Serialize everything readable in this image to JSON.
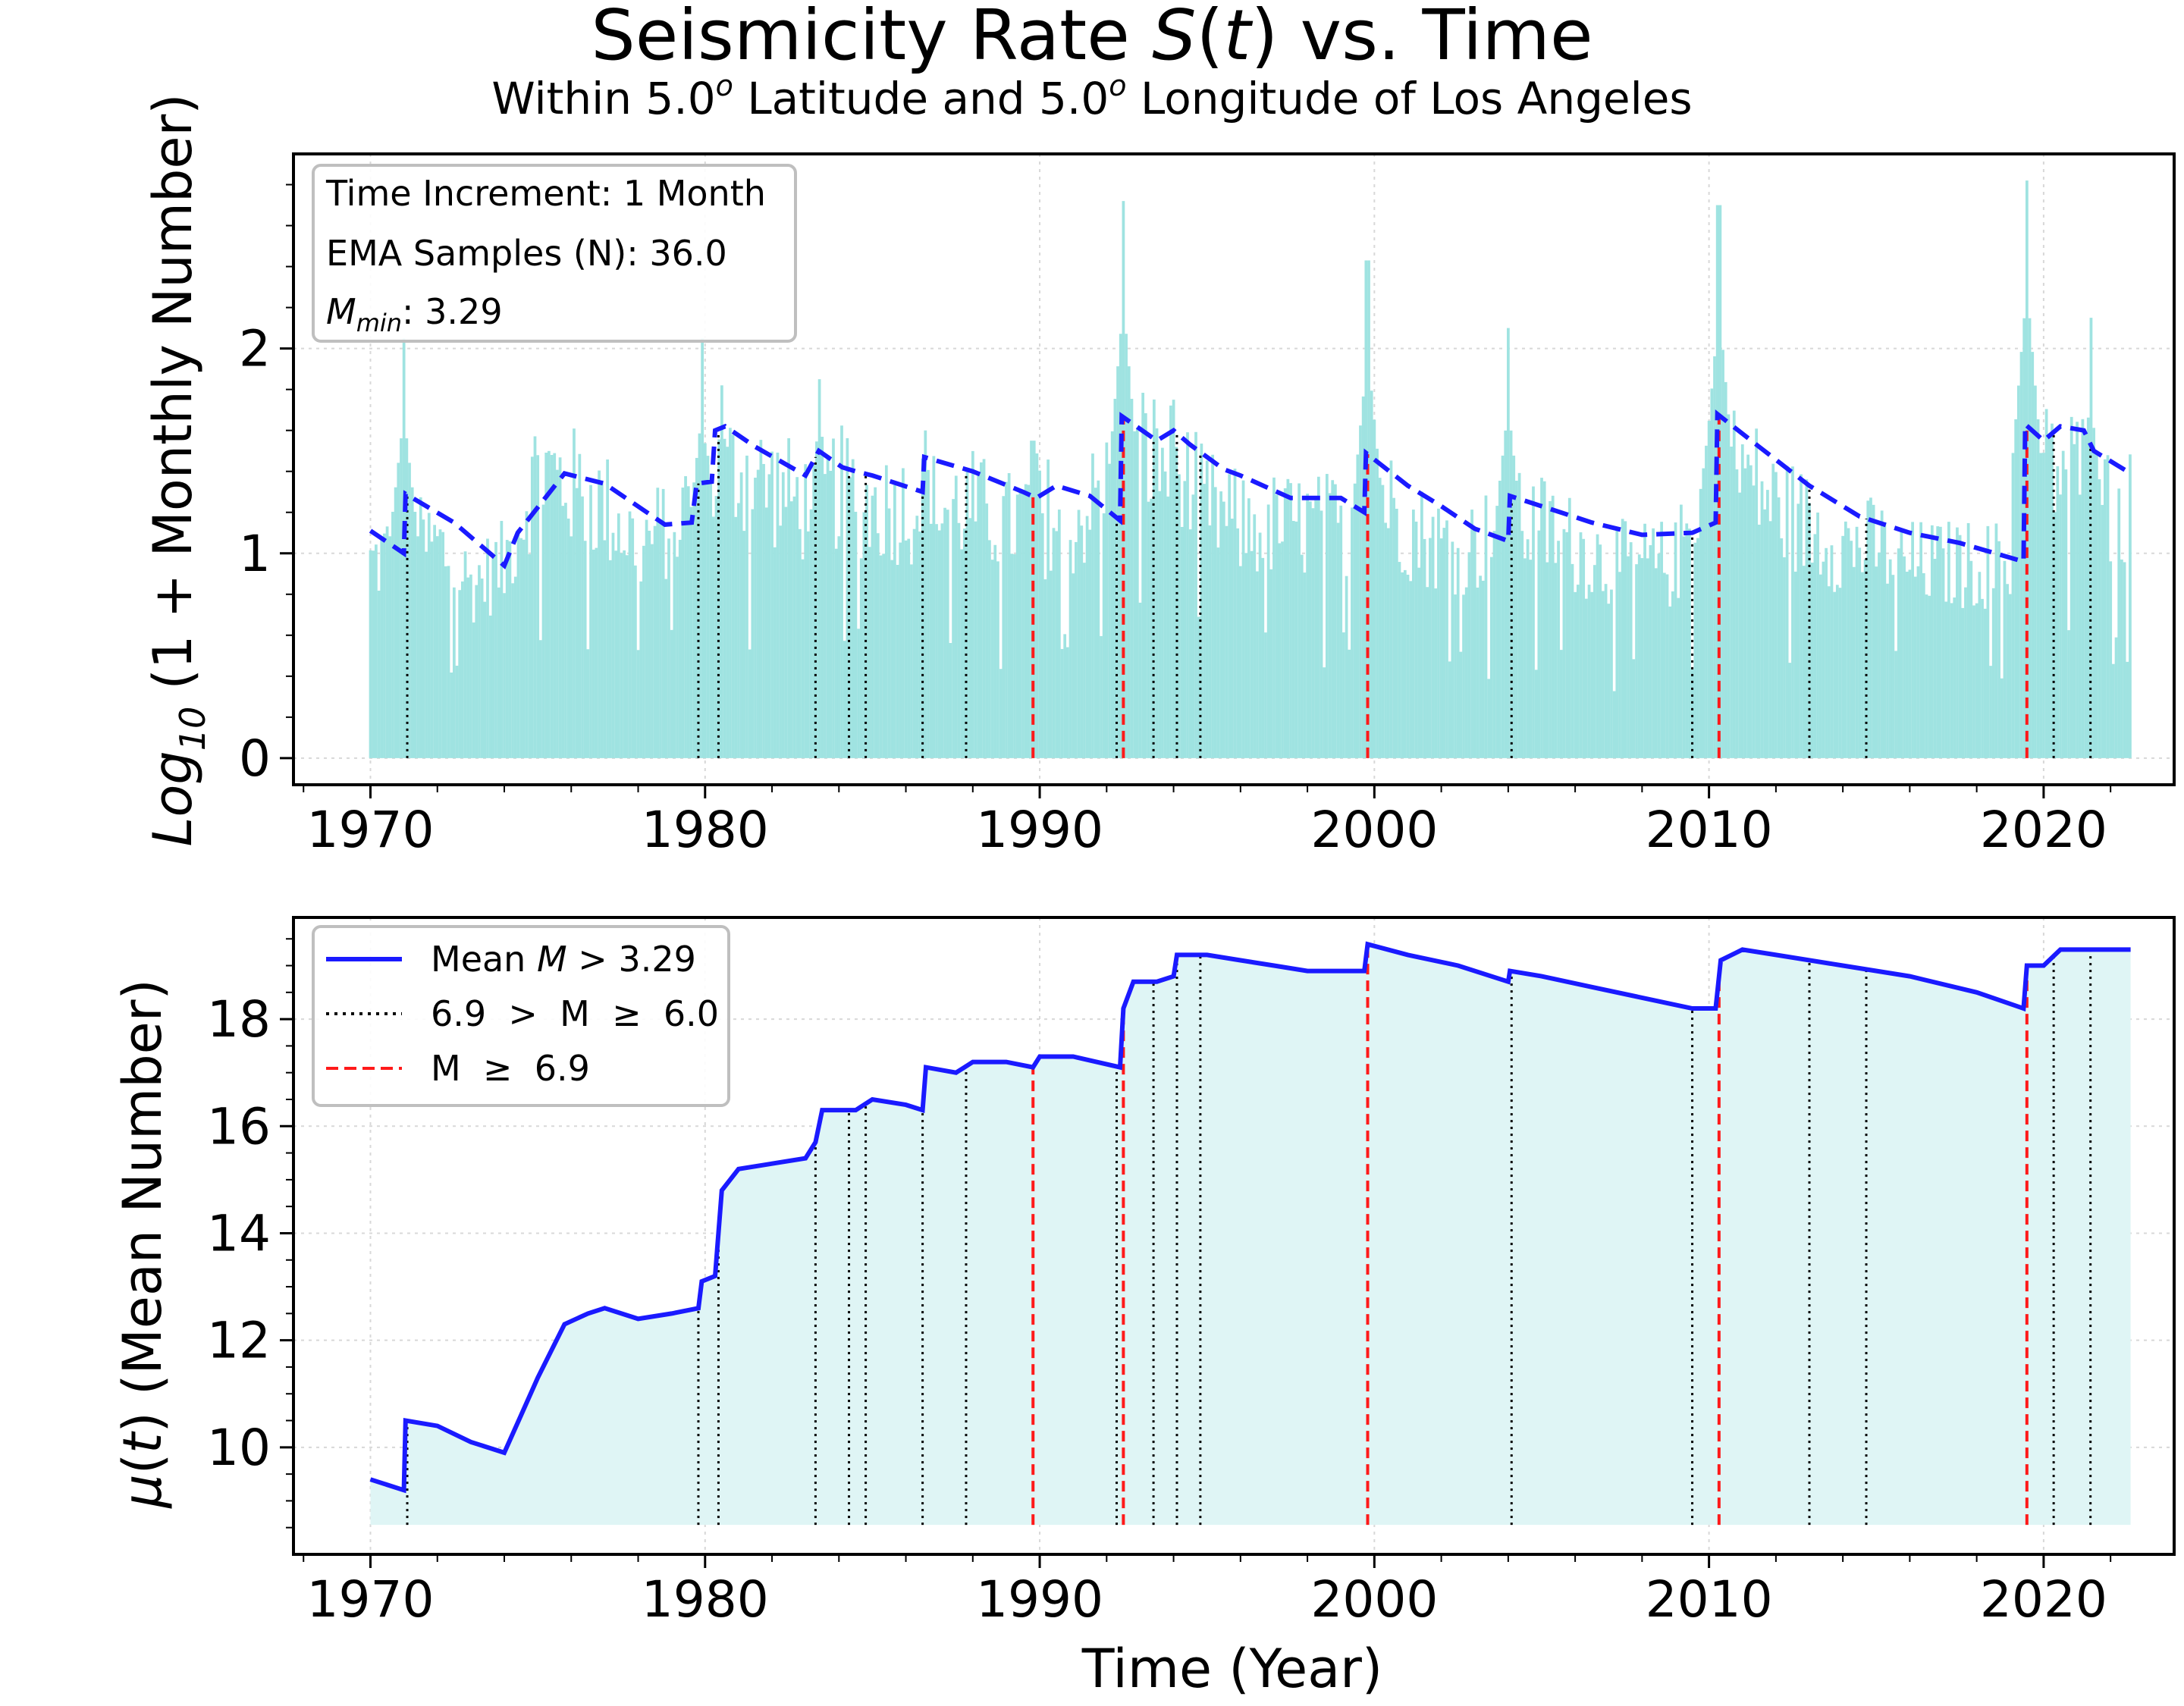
{
  "figure": {
    "title_prefix": "Seismicity Rate ",
    "title_italic": "S",
    "title_paren_open": "(",
    "title_italic_t": "t",
    "title_suffix": ") vs. Time",
    "subtitle_a": "Within 5.0",
    "subtitle_sup_a": "o",
    "subtitle_b": " Latitude and 5.0",
    "subtitle_sup_b": "o",
    "subtitle_c": " Longitude of Los Angeles",
    "xlabel": "Time (Year)"
  },
  "info_box": {
    "line1": "Time Increment: 1 Month",
    "line2": "EMA Samples (N): 36.0",
    "line3_italic": "M",
    "line3_sub": "min",
    "line3_rest": ": 3.29"
  },
  "colors": {
    "bars": "#9fe3e1",
    "ema_line": "#1a1aff",
    "mean_line": "#1a1aff",
    "fill": "#dff5f5",
    "moderate_quake": "#000000",
    "large_quake": "#ff1a1a",
    "grid": "#d8d8d8"
  },
  "chart_data": [
    {
      "type": "bar",
      "panel": "top",
      "ylabel_prefix": "Log",
      "ylabel_sub": "10",
      "ylabel_suffix": " (1 + Monthly Number)",
      "xlim": [
        1967.7,
        2023.9
      ],
      "ylim": [
        -0.13,
        2.95
      ],
      "xticks": [
        1970,
        1980,
        1990,
        2000,
        2010,
        2020
      ],
      "yticks": [
        0,
        1,
        2
      ],
      "ytick_labels": [
        "0",
        "1",
        "2"
      ],
      "grid": true,
      "bars_monthly_envelope": {
        "x": [
          1970.0,
          1971.0,
          1972.0,
          1973.0,
          1974.0,
          1975.0,
          1976.0,
          1977.0,
          1978.0,
          1979.0,
          1980.0,
          1981.0,
          1982.0,
          1983.0,
          1984.0,
          1985.0,
          1986.0,
          1987.0,
          1988.0,
          1989.0,
          1990.0,
          1991.0,
          1992.0,
          1993.0,
          1994.0,
          1995.0,
          1996.0,
          1997.0,
          1998.0,
          1999.0,
          2000.0,
          2001.0,
          2002.0,
          2003.0,
          2004.0,
          2005.0,
          2006.0,
          2007.0,
          2008.0,
          2009.0,
          2010.0,
          2011.0,
          2012.0,
          2013.0,
          2014.0,
          2015.0,
          2016.0,
          2017.0,
          2018.0,
          2019.0,
          2020.0,
          2021.0,
          2022.0
        ],
        "y": [
          1.0,
          1.1,
          1.1,
          0.9,
          1.0,
          1.5,
          1.4,
          1.3,
          1.1,
          1.2,
          1.4,
          1.5,
          1.4,
          1.3,
          1.4,
          1.3,
          1.3,
          1.3,
          1.3,
          1.2,
          1.3,
          1.2,
          1.4,
          1.6,
          1.5,
          1.3,
          1.2,
          1.2,
          1.2,
          1.2,
          1.4,
          1.2,
          1.1,
          1.1,
          1.2,
          1.2,
          1.1,
          1.0,
          1.0,
          1.0,
          1.5,
          1.5,
          1.3,
          1.2,
          1.1,
          1.1,
          1.0,
          1.0,
          1.0,
          1.0,
          1.5,
          1.5,
          1.3
        ]
      },
      "bar_spikes": {
        "x": [
          1971.0,
          1979.9,
          1980.5,
          1983.4,
          1986.6,
          1989.8,
          1992.5,
          1994.0,
          1999.8,
          2004.0,
          2010.3,
          2019.5,
          2021.4
        ],
        "y": [
          2.05,
          2.05,
          1.82,
          1.85,
          1.6,
          1.55,
          2.72,
          1.75,
          2.43,
          2.1,
          2.7,
          2.82,
          2.15
        ]
      },
      "series": [
        {
          "label": "EMA",
          "style": "dashed",
          "x": [
            1970.0,
            1971.0,
            1971.05,
            1972.5,
            1974.0,
            1974.4,
            1975.8,
            1977.0,
            1978.8,
            1979.6,
            1979.75,
            1980.2,
            1980.3,
            1980.6,
            1981.5,
            1983.0,
            1983.4,
            1984.1,
            1984.5,
            1985.0,
            1986.5,
            1986.55,
            1988.0,
            1989.5,
            1989.9,
            1990.5,
            1991.5,
            1992.4,
            1992.45,
            1993.5,
            1994.0,
            1994.5,
            1995.5,
            1996.0,
            1997.5,
            1999.0,
            1999.7,
            1999.75,
            2001.0,
            2002.0,
            2003.0,
            2004.0,
            2004.05,
            2005.0,
            2006.5,
            2008.0,
            2009.5,
            2010.2,
            2010.25,
            2011.5,
            2013.0,
            2014.5,
            2016.0,
            2017.5,
            2019.4,
            2019.45,
            2020.0,
            2020.5,
            2021.2,
            2021.5,
            2022.6
          ],
          "y": [
            1.11,
            1.0,
            1.29,
            1.15,
            0.94,
            1.1,
            1.39,
            1.34,
            1.14,
            1.15,
            1.34,
            1.35,
            1.6,
            1.62,
            1.52,
            1.38,
            1.5,
            1.42,
            1.4,
            1.38,
            1.3,
            1.47,
            1.4,
            1.3,
            1.27,
            1.33,
            1.28,
            1.16,
            1.67,
            1.55,
            1.6,
            1.53,
            1.41,
            1.38,
            1.27,
            1.27,
            1.2,
            1.49,
            1.33,
            1.23,
            1.12,
            1.06,
            1.28,
            1.23,
            1.15,
            1.09,
            1.1,
            1.15,
            1.68,
            1.52,
            1.33,
            1.18,
            1.1,
            1.05,
            0.96,
            1.63,
            1.55,
            1.62,
            1.6,
            1.5,
            1.39
          ]
        }
      ]
    },
    {
      "type": "line",
      "panel": "bottom",
      "ylabel_mu": "μ",
      "ylabel_t": "t",
      "ylabel_rest": " (Mean Number)",
      "xlim": [
        1967.7,
        2023.9
      ],
      "ylim": [
        8.0,
        19.9
      ],
      "xticks": [
        1970,
        1980,
        1990,
        2000,
        2010,
        2020
      ],
      "yticks": [
        10,
        12,
        14,
        16,
        18
      ],
      "ytick_labels": [
        "10",
        "12",
        "14",
        "16",
        "18"
      ],
      "grid": true,
      "legend_position": "upper left",
      "series": [
        {
          "name_prefix": "Mean ",
          "name_italic": "M",
          "name_suffix": " > 3.29",
          "style": "solid",
          "x": [
            1970.0,
            1971.0,
            1971.05,
            1972.0,
            1973.0,
            1974.0,
            1974.5,
            1975.0,
            1975.8,
            1976.5,
            1977.0,
            1978.0,
            1979.0,
            1979.8,
            1979.9,
            1980.3,
            1980.5,
            1981.0,
            1982.0,
            1983.0,
            1983.3,
            1983.5,
            1984.5,
            1985.0,
            1986.0,
            1986.5,
            1986.6,
            1987.5,
            1988.0,
            1989.0,
            1989.8,
            1990.0,
            1991.0,
            1992.4,
            1992.5,
            1992.8,
            1993.5,
            1994.0,
            1994.1,
            1995.0,
            1996.0,
            1997.0,
            1998.0,
            1999.7,
            1999.8,
            2001.0,
            2002.5,
            2004.0,
            2004.05,
            2005.0,
            2006.5,
            2008.0,
            2009.5,
            2010.2,
            2010.35,
            2011.0,
            2012.0,
            2014.0,
            2016.0,
            2018.0,
            2019.4,
            2019.5,
            2020.0,
            2020.5,
            2021.0,
            2022.0,
            2022.6
          ],
          "y": [
            9.4,
            9.2,
            10.5,
            10.4,
            10.1,
            9.9,
            10.6,
            11.3,
            12.3,
            12.5,
            12.6,
            12.4,
            12.5,
            12.6,
            13.1,
            13.2,
            14.8,
            15.2,
            15.3,
            15.4,
            15.7,
            16.3,
            16.3,
            16.5,
            16.4,
            16.3,
            17.1,
            17.0,
            17.2,
            17.2,
            17.1,
            17.3,
            17.3,
            17.1,
            18.2,
            18.7,
            18.7,
            18.8,
            19.2,
            19.2,
            19.1,
            19.0,
            18.9,
            18.9,
            19.4,
            19.2,
            19.0,
            18.7,
            18.9,
            18.8,
            18.6,
            18.4,
            18.2,
            18.2,
            19.1,
            19.3,
            19.2,
            19.0,
            18.8,
            18.5,
            18.2,
            19.0,
            19.0,
            19.3,
            19.3,
            19.3,
            19.3
          ]
        },
        {
          "name_text": "6.9  >  M  ≥  6.0",
          "style": "dotted"
        },
        {
          "name_text": "M  ≥  6.9",
          "style": "dashed"
        }
      ],
      "moderate_events_x": [
        1971.1,
        1979.8,
        1980.4,
        1983.3,
        1984.3,
        1984.8,
        1986.5,
        1987.8,
        1992.3,
        1993.4,
        1994.1,
        1994.8,
        2004.1,
        2009.5,
        2013.0,
        2014.7,
        2020.3,
        2021.4
      ],
      "large_events_x": [
        1989.8,
        1992.5,
        1999.8,
        2010.3,
        2019.5
      ]
    }
  ]
}
